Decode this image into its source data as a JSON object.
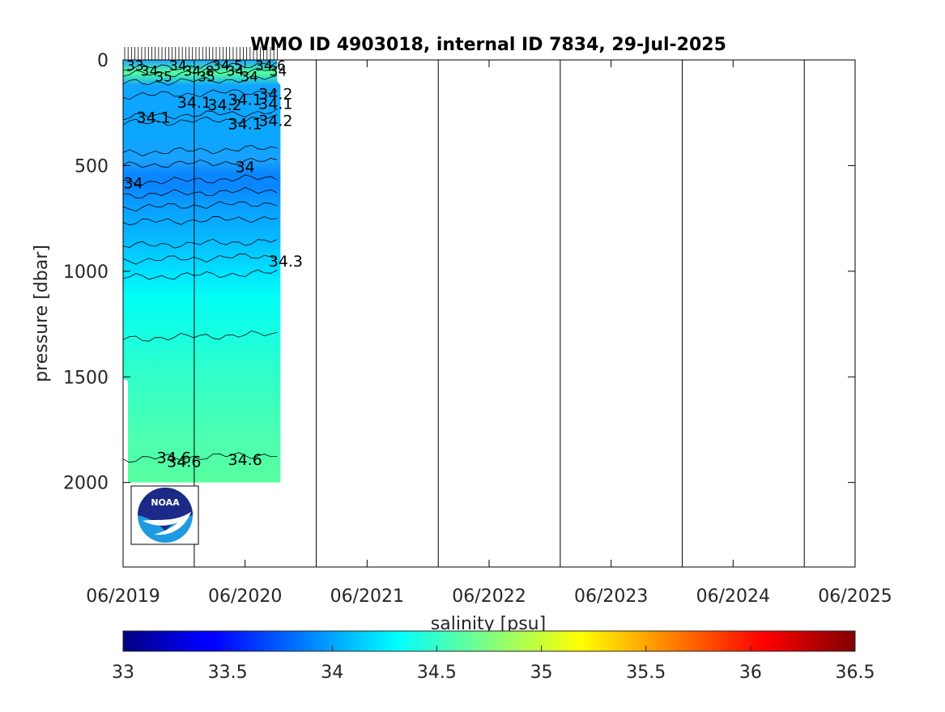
{
  "chart_data": {
    "type": "heatmap",
    "title": "WMO ID 4903018, internal ID 7834, 29-Jul-2025",
    "ylabel": "pressure [dbar]",
    "ylim": [
      0,
      2400
    ],
    "y_reversed": true,
    "yticks": [
      0,
      500,
      1000,
      1500,
      2000
    ],
    "xticks": [
      "06/2019",
      "06/2020",
      "06/2021",
      "06/2022",
      "06/2023",
      "06/2024",
      "06/2025"
    ],
    "vertical_lines": [
      "01/2020",
      "01/2021",
      "01/2022",
      "01/2023",
      "01/2024",
      "01/2025"
    ],
    "data_coverage": {
      "x_start": "06/2019",
      "x_end": "09/2020",
      "pressure_max": 2000
    },
    "contours": [
      {
        "level": "34.1",
        "approx_pressure": 170
      },
      {
        "level": "34.2",
        "approx_pressure": 270
      },
      {
        "level": "34.1",
        "approx_pressure": 300
      },
      {
        "level": "34",
        "approx_pressure": 500
      },
      {
        "level": "34",
        "approx_pressure": 580
      },
      {
        "level": "34.3",
        "approx_pressure": 950
      },
      {
        "level": "34.6",
        "approx_pressure": 1890
      }
    ],
    "contour_labels": [
      {
        "text": "34.1",
        "x": "09/2019",
        "p": 270
      },
      {
        "text": "34.1",
        "x": "01/2020",
        "p": 200
      },
      {
        "text": "34.2",
        "x": "04/2020",
        "p": 210
      },
      {
        "text": "34.1",
        "x": "06/2020",
        "p": 185
      },
      {
        "text": "34.2",
        "x": "09/2020",
        "p": 160
      },
      {
        "text": "34.1",
        "x": "09/2020",
        "p": 205
      },
      {
        "text": "34.1",
        "x": "06/2020",
        "p": 300
      },
      {
        "text": "34.2",
        "x": "09/2020",
        "p": 285
      },
      {
        "text": "34",
        "x": "06/2020",
        "p": 505
      },
      {
        "text": "34",
        "x": "07/2019",
        "p": 580
      },
      {
        "text": "34.3",
        "x": "10/2020",
        "p": 950
      },
      {
        "text": "34.6",
        "x": "11/2019",
        "p": 1880
      },
      {
        "text": "34.6",
        "x": "12/2019",
        "p": 1900
      },
      {
        "text": "34.6",
        "x": "06/2020",
        "p": 1890
      }
    ],
    "surface_labels": [
      "33",
      "34",
      "35",
      "34",
      "34.8",
      "35",
      "34.5",
      "34",
      "34",
      "34.6",
      "34"
    ],
    "colorbar": {
      "label": "salinity [psu]",
      "min": 33,
      "max": 36.5,
      "ticks": [
        "33",
        "33.5",
        "34",
        "34.5",
        "35",
        "35.5",
        "36",
        "36.5"
      ],
      "colormap": "jet"
    },
    "logo_text": "NOAA",
    "colors": {
      "frame": "#000000",
      "logo_navy": "#1b2a86",
      "logo_blue": "#1e9be0"
    }
  }
}
